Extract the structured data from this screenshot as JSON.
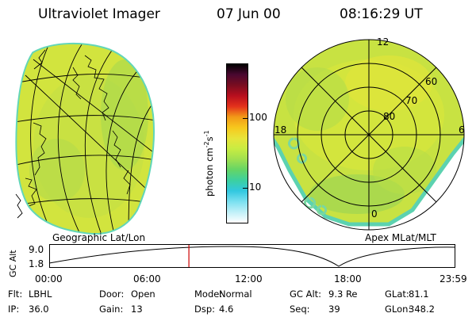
{
  "header": {
    "title": "Ultraviolet Imager",
    "date": "07 Jun 00",
    "time": "08:16:29 UT"
  },
  "panels": {
    "left_label": "Geographic Lat/Lon",
    "right_label": "Apex MLat/MLT"
  },
  "polar": {
    "top": "12",
    "left": "18",
    "right": "6",
    "bottom": "0",
    "rings": [
      "60",
      "70",
      "80"
    ]
  },
  "colorbar": {
    "unit_text": "photon cm",
    "unit_exp": "-2",
    "unit_s": "s",
    "unit_exp2": "-1",
    "ticks": [
      "100",
      "10"
    ],
    "colors": [
      "#000000",
      "#4a0830",
      "#7a0d20",
      "#b80f1e",
      "#e4321c",
      "#f29a17",
      "#f7c81d",
      "#e8e43a",
      "#c8ec42",
      "#9fe050",
      "#64d566",
      "#3cd0a0",
      "#32c8e0",
      "#7ae0f0",
      "#c0f0f8",
      "#ffffff"
    ]
  },
  "altitude_plot": {
    "ylabel": "GC Alt",
    "yticks": [
      "9.0",
      "1.8"
    ],
    "xticks": [
      "00:00",
      "06:00",
      "12:00",
      "18:00",
      "23:59"
    ],
    "current_time_frac": 0.344
  },
  "info": [
    [
      {
        "k": "Flt:",
        "v": "LBHL"
      },
      {
        "k": "Door:",
        "v": "Open"
      },
      {
        "k": "Mode:",
        "v": "Normal"
      },
      {
        "k": "GC Alt:",
        "v": "9.3 Re"
      },
      {
        "k": "GLat:",
        "v": "81.1"
      }
    ],
    [
      {
        "k": "IP:",
        "v": "36.0"
      },
      {
        "k": "Gain:",
        "v": "13"
      },
      {
        "k": "Dsp:",
        "v": "4.6"
      },
      {
        "k": "Seq:",
        "v": "39"
      },
      {
        "k": "GLon:",
        "v": "348.2"
      }
    ]
  ],
  "colors": {
    "image_fill": "#d4e640",
    "image_fill2": "#b8de48",
    "edge": "#5ed2b4",
    "marker": "#cc0000"
  }
}
